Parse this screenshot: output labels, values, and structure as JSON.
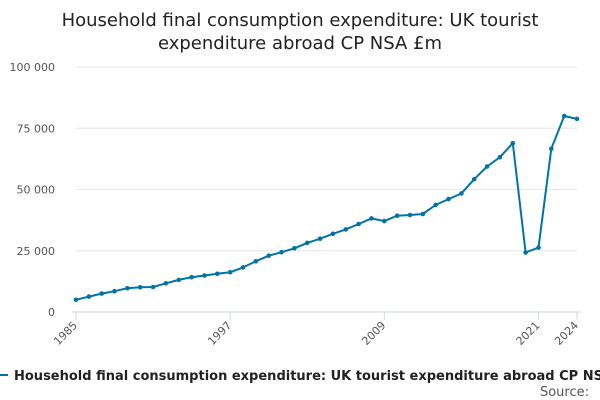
{
  "chart_data": {
    "type": "line",
    "title_lines": [
      "Household final consumption expenditure: UK tourist",
      "expenditure abroad CP NSA £m"
    ],
    "xlabel": "",
    "ylabel": "",
    "ylim": [
      0,
      100000
    ],
    "xlim": [
      1985,
      2024
    ],
    "y_ticks": [
      0,
      25000,
      50000,
      75000,
      100000
    ],
    "y_tick_labels": [
      "0",
      "25 000",
      "50 000",
      "75 000",
      "100 000"
    ],
    "x_ticks": [
      1985,
      1997,
      2009,
      2021,
      2024
    ],
    "x_tick_labels": [
      "1985",
      "1997",
      "2009",
      "2021",
      "2024"
    ],
    "grid": true,
    "legend_position": "bottom",
    "color": "#0075a3",
    "series": [
      {
        "name": "Household final consumption expenditure: UK tourist expenditure abroad CP NSA £m",
        "x": [
          1985,
          1986,
          1987,
          1988,
          1989,
          1990,
          1991,
          1992,
          1993,
          1994,
          1995,
          1996,
          1997,
          1998,
          1999,
          2000,
          2001,
          2002,
          2003,
          2004,
          2005,
          2006,
          2007,
          2008,
          2009,
          2010,
          2011,
          2012,
          2013,
          2014,
          2015,
          2016,
          2017,
          2018,
          2019,
          2020,
          2021,
          2022,
          2023,
          2024
        ],
        "values": [
          5000,
          6300,
          7500,
          8500,
          9700,
          10100,
          10200,
          11700,
          13100,
          14200,
          14900,
          15600,
          16200,
          18200,
          20700,
          23000,
          24400,
          26000,
          28200,
          29900,
          31900,
          33700,
          35900,
          38200,
          37100,
          39300,
          39600,
          40000,
          43700,
          46100,
          48400,
          54200,
          59400,
          63200,
          68900,
          24300,
          26300,
          66600,
          80000,
          78800
        ]
      }
    ]
  },
  "legend": {
    "label": "Household final consumption expenditure: UK tourist expenditure abroad CP NSA £m"
  },
  "source": {
    "label": "Source:"
  }
}
